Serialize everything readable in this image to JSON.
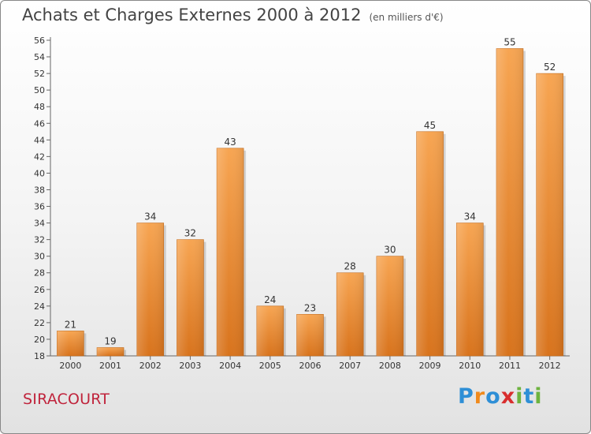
{
  "chart_data": {
    "type": "bar",
    "title": "Achats et Charges Externes 2000 à 2012",
    "subtitle": "(en milliers d'€)",
    "categories": [
      "2000",
      "2001",
      "2002",
      "2003",
      "2004",
      "2005",
      "2006",
      "2007",
      "2008",
      "2009",
      "2010",
      "2011",
      "2012"
    ],
    "values": [
      21,
      19,
      34,
      32,
      43,
      24,
      23,
      28,
      30,
      45,
      34,
      55,
      52
    ],
    "ylim": [
      18,
      56
    ],
    "yticks": [
      18,
      20,
      22,
      24,
      26,
      28,
      30,
      32,
      34,
      36,
      38,
      40,
      42,
      44,
      46,
      48,
      50,
      52,
      54,
      56
    ],
    "grid": false,
    "xlabel": "",
    "ylabel": "",
    "bar_color_top": "#f7a552",
    "bar_color_bottom": "#d8731c"
  },
  "commune": "SIRACOURT",
  "logo": {
    "text": "Proxiti",
    "letters": [
      {
        "ch": "P",
        "color": "#2e8fd6"
      },
      {
        "ch": "r",
        "color": "#f08a1c"
      },
      {
        "ch": "o",
        "color": "#2e8fd6"
      },
      {
        "ch": "x",
        "color": "#d82e2e"
      },
      {
        "ch": "i",
        "color": "#6db33f"
      },
      {
        "ch": "t",
        "color": "#2e8fd6"
      },
      {
        "ch": "i",
        "color": "#6db33f"
      }
    ]
  }
}
